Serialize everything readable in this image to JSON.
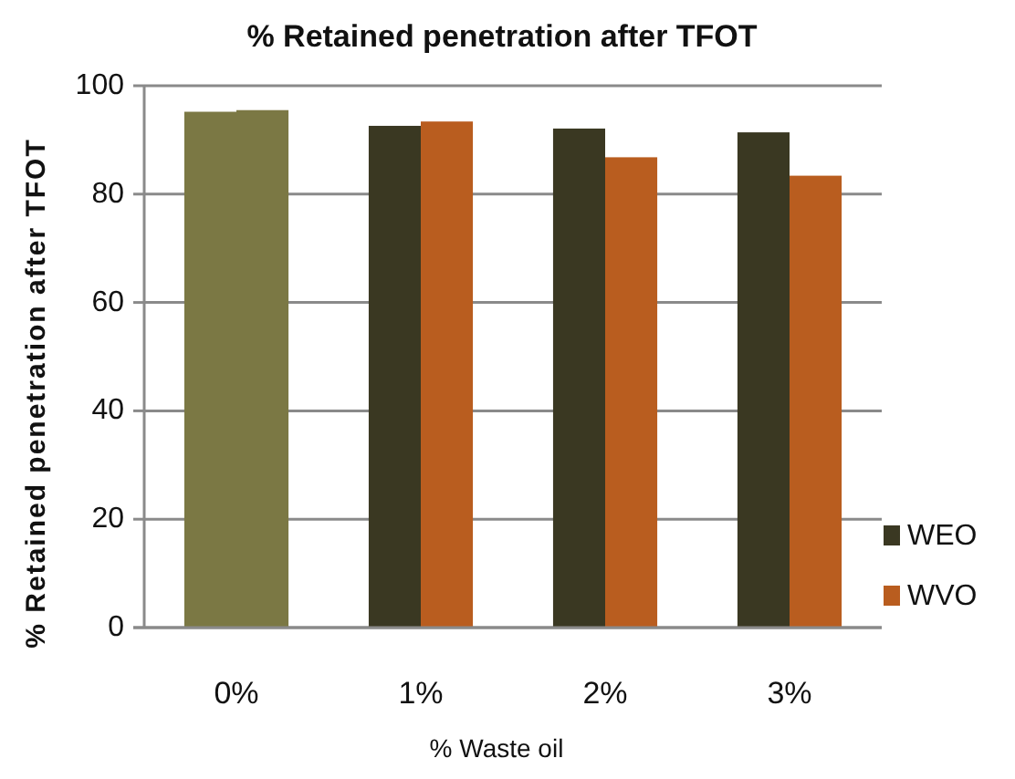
{
  "chart_data": {
    "type": "bar",
    "title": "% Retained penetration after TFOT",
    "xlabel": "% Waste oil",
    "ylabel": "% Retained penetration after TFOT",
    "categories": [
      "0%",
      "1%",
      "2%",
      "3%"
    ],
    "series": [
      {
        "name": "WEO",
        "color": "#3a3822",
        "colors": [
          "#7b7844",
          "#3a3822",
          "#3a3822",
          "#3a3822"
        ],
        "values": [
          95.2,
          92.6,
          92.1,
          91.4
        ]
      },
      {
        "name": "WVO",
        "color": "#b95d1f",
        "colors": [
          "#7b7844",
          "#b95d1f",
          "#b95d1f",
          "#b95d1f"
        ],
        "values": [
          95.5,
          93.4,
          86.8,
          83.4
        ]
      }
    ],
    "ylim": [
      0,
      100
    ],
    "yticks": [
      0,
      20,
      40,
      60,
      80,
      100
    ],
    "grid": "y",
    "legend": "right"
  }
}
